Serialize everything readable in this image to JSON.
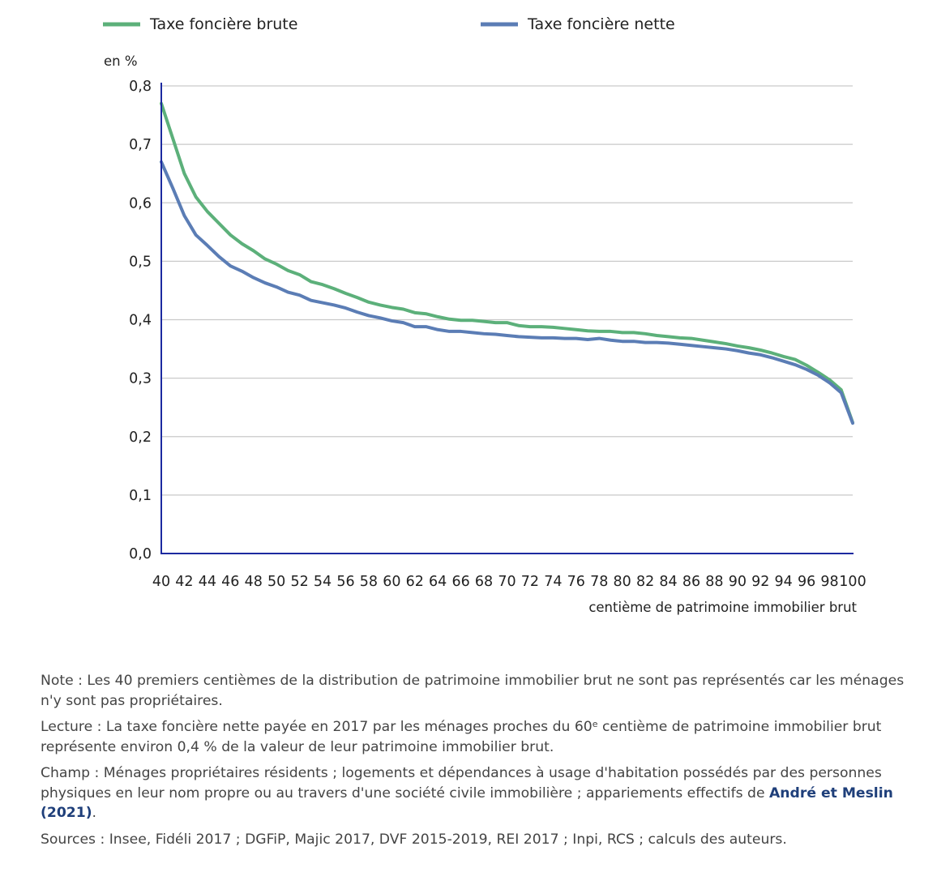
{
  "chart_data": {
    "type": "line",
    "xlabel": "centième de patrimoine immobilier brut",
    "ylabel": "en %",
    "xlim": [
      40,
      100
    ],
    "ylim": [
      0,
      0.8
    ],
    "yticks": [
      "0,0",
      "0,1",
      "0,2",
      "0,3",
      "0,4",
      "0,5",
      "0,6",
      "0,7",
      "0,8"
    ],
    "xticks": [
      "40",
      "42",
      "44",
      "46",
      "48",
      "50",
      "52",
      "54",
      "56",
      "58",
      "60",
      "62",
      "64",
      "66",
      "68",
      "70",
      "72",
      "74",
      "76",
      "78",
      "80",
      "82",
      "84",
      "86",
      "88",
      "90",
      "92",
      "94",
      "96",
      "98",
      "100"
    ],
    "grid": true,
    "legend_position": "top",
    "x": [
      40,
      41,
      42,
      43,
      44,
      45,
      46,
      47,
      48,
      49,
      50,
      51,
      52,
      53,
      54,
      55,
      56,
      57,
      58,
      59,
      60,
      61,
      62,
      63,
      64,
      65,
      66,
      67,
      68,
      69,
      70,
      71,
      72,
      73,
      74,
      75,
      76,
      77,
      78,
      79,
      80,
      81,
      82,
      83,
      84,
      85,
      86,
      87,
      88,
      89,
      90,
      91,
      92,
      93,
      94,
      95,
      96,
      97,
      98,
      99,
      100
    ],
    "series": [
      {
        "name": "Taxe foncière brute",
        "color": "#5cb07a",
        "values": [
          0.77,
          0.71,
          0.65,
          0.61,
          0.585,
          0.565,
          0.545,
          0.53,
          0.518,
          0.504,
          0.495,
          0.484,
          0.477,
          0.465,
          0.46,
          0.453,
          0.445,
          0.438,
          0.43,
          0.425,
          0.421,
          0.418,
          0.412,
          0.41,
          0.405,
          0.401,
          0.399,
          0.399,
          0.397,
          0.395,
          0.395,
          0.39,
          0.388,
          0.388,
          0.387,
          0.385,
          0.383,
          0.381,
          0.38,
          0.38,
          0.378,
          0.378,
          0.376,
          0.373,
          0.371,
          0.369,
          0.368,
          0.365,
          0.362,
          0.359,
          0.355,
          0.352,
          0.348,
          0.343,
          0.337,
          0.332,
          0.322,
          0.31,
          0.297,
          0.28,
          0.224
        ]
      },
      {
        "name": "Taxe foncière nette",
        "color": "#5b7db5",
        "values": [
          0.67,
          0.625,
          0.578,
          0.545,
          0.527,
          0.508,
          0.492,
          0.483,
          0.472,
          0.463,
          0.456,
          0.447,
          0.442,
          0.433,
          0.429,
          0.425,
          0.42,
          0.413,
          0.407,
          0.403,
          0.398,
          0.395,
          0.388,
          0.388,
          0.383,
          0.38,
          0.38,
          0.378,
          0.376,
          0.375,
          0.373,
          0.371,
          0.37,
          0.369,
          0.369,
          0.368,
          0.368,
          0.366,
          0.368,
          0.365,
          0.363,
          0.363,
          0.361,
          0.361,
          0.36,
          0.358,
          0.356,
          0.354,
          0.352,
          0.35,
          0.347,
          0.343,
          0.34,
          0.335,
          0.329,
          0.323,
          0.315,
          0.305,
          0.292,
          0.275,
          0.223
        ]
      }
    ]
  },
  "notes": {
    "note": "Note : Les 40 premiers centièmes de la distribution de patrimoine immobilier brut ne sont pas représentés car les ménages n'y sont pas propriétaires.",
    "lecture_before": "Lecture : La taxe foncière nette payée en 2017 par les ménages proches du 60",
    "lecture_sup": "e",
    "lecture_after": " centième de patrimoine immobilier brut représente environ 0,4 % de la valeur de leur patrimoine immobilier brut.",
    "champ": "Champ : Ménages propriétaires résidents ; logements et dépendances à usage d'habitation possédés par des personnes physiques en leur nom propre ou au travers d'une société civile immobilière ; appariements effectifs de ",
    "champ_link": "André et Meslin (2021)",
    "champ_end": ".",
    "sources": "Sources : Insee, Fidéli 2017 ; DGFiP, Majic 2017, DVF 2015-2019, REI 2017 ; Inpi, RCS ; calculs des auteurs."
  }
}
